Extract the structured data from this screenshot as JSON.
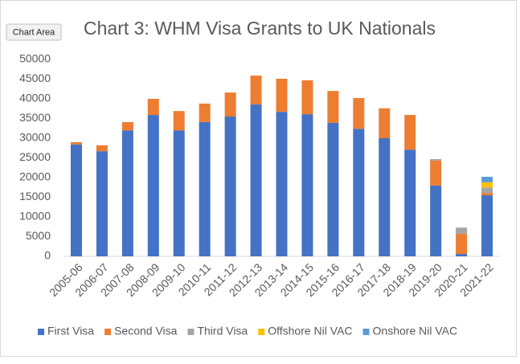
{
  "tooltip": "Chart Area",
  "chart_data": {
    "type": "stacked-bar",
    "title": "Chart 3: WHM Visa Grants to UK Nationals",
    "categories": [
      "2005-06",
      "2006-07",
      "2007-08",
      "2008-09",
      "2009-10",
      "2010-11",
      "2011-12",
      "2012-13",
      "2013-14",
      "2014-15",
      "2015-16",
      "2016-17",
      "2017-18",
      "2018-19",
      "2019-20",
      "2020-21",
      "2021-22"
    ],
    "series": [
      {
        "name": "First Visa",
        "color": "#4472c4",
        "values": [
          28400,
          26700,
          32000,
          35900,
          32000,
          34100,
          35500,
          38600,
          36700,
          36100,
          33900,
          32400,
          30000,
          27100,
          18000,
          600,
          15500
        ]
      },
      {
        "name": "Second Visa",
        "color": "#ed7d31",
        "values": [
          600,
          1500,
          2100,
          4100,
          4900,
          4700,
          6100,
          7300,
          8400,
          8600,
          8100,
          7800,
          7600,
          8800,
          6300,
          5100,
          600
        ]
      },
      {
        "name": "Third Visa",
        "color": "#a5a5a5",
        "values": [
          0,
          0,
          0,
          0,
          0,
          0,
          0,
          0,
          0,
          0,
          0,
          0,
          0,
          0,
          400,
          1600,
          1400
        ]
      },
      {
        "name": "Offshore Nil VAC",
        "color": "#ffc000",
        "values": [
          0,
          0,
          0,
          0,
          0,
          0,
          0,
          0,
          0,
          0,
          0,
          0,
          0,
          0,
          0,
          0,
          1300
        ]
      },
      {
        "name": "Onshore Nil VAC",
        "color": "#5b9bd5",
        "values": [
          0,
          0,
          0,
          0,
          0,
          0,
          0,
          0,
          0,
          0,
          0,
          0,
          0,
          0,
          0,
          0,
          1400
        ]
      }
    ],
    "ylim": [
      0,
      50000
    ],
    "yticks": [
      0,
      5000,
      10000,
      15000,
      20000,
      25000,
      30000,
      35000,
      40000,
      45000,
      50000
    ],
    "grid": false,
    "legend": "bottom"
  }
}
